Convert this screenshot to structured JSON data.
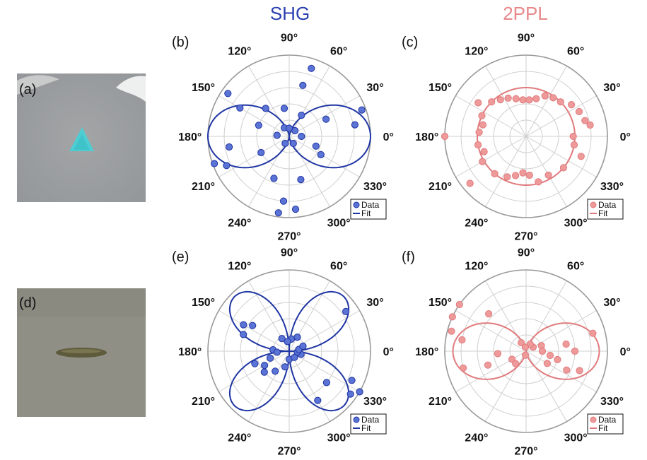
{
  "columns": [
    {
      "title": "SHG",
      "color": "#2b3fb0"
    },
    {
      "title": "2PPL",
      "color": "#e8888a"
    }
  ],
  "image_panels": [
    {
      "label": "(a)",
      "description_colors": {
        "background": "#9d9fa0",
        "flake": "#4cc9cf"
      }
    },
    {
      "label": "(d)",
      "description_colors": {
        "background": "#8e8e84",
        "flake": "#5e5a3c"
      }
    }
  ],
  "colors": {
    "shg": "#1f35a3",
    "shg_fill": "#5a73d4",
    "ppl": "#e07a7c",
    "ppl_fill": "#ef9a9a",
    "grid": "#cfcfcf"
  },
  "chart_data": [
    {
      "label": "(b)",
      "type": "scatter",
      "projection": "polar",
      "angle_unit": "deg",
      "radial_ticks": 5,
      "grid": true,
      "legend": "bottom-right",
      "angle_labels": [
        "0°",
        "30°",
        "60°",
        "90°",
        "120°",
        "150°",
        "180°",
        "210°",
        "240°",
        "270°",
        "300°",
        "330°"
      ],
      "series": [
        {
          "name": "Data",
          "points": [
            [
              20,
              0.95
            ],
            [
              10,
              0.82
            ],
            [
              25,
              0.5
            ],
            [
              72,
              0.88
            ],
            [
              75,
              0.65
            ],
            [
              60,
              0.3
            ],
            [
              100,
              0.35
            ],
            [
              130,
              0.45
            ],
            [
              145,
              0.92
            ],
            [
              150,
              0.7
            ],
            [
              160,
              0.4
            ],
            [
              175,
              0.15
            ],
            [
              190,
              0.75
            ],
            [
              200,
              0.98
            ],
            [
              205,
              0.85
            ],
            [
              210,
              0.4
            ],
            [
              250,
              0.55
            ],
            [
              262,
              0.95
            ],
            [
              265,
              0.8
            ],
            [
              275,
              0.9
            ],
            [
              285,
              0.55
            ],
            [
              330,
              0.45
            ],
            [
              340,
              0.35
            ],
            [
              0,
              0.15
            ],
            [
              45,
              0.1
            ],
            [
              120,
              0.12
            ],
            [
              240,
              0.1
            ],
            [
              300,
              0.1
            ],
            [
              90,
              0.1
            ]
          ]
        },
        {
          "name": "Fit",
          "model": "|cos(3(θ-θ0))|",
          "theta0_deg": 15,
          "amplitude": 1.0
        }
      ]
    },
    {
      "label": "(c)",
      "type": "scatter",
      "projection": "polar",
      "angle_unit": "deg",
      "radial_ticks": 5,
      "grid": true,
      "legend": "bottom-right",
      "angle_labels": [
        "0°",
        "30°",
        "60°",
        "90°",
        "120°",
        "150°",
        "180°",
        "210°",
        "240°",
        "270°",
        "300°",
        "330°"
      ],
      "series": [
        {
          "name": "Data",
          "points": [
            [
              0,
              0.58
            ],
            [
              10,
              0.8
            ],
            [
              15,
              0.75
            ],
            [
              25,
              0.72
            ],
            [
              35,
              0.68
            ],
            [
              45,
              0.6
            ],
            [
              55,
              0.58
            ],
            [
              65,
              0.55
            ],
            [
              75,
              0.48
            ],
            [
              85,
              0.45
            ],
            [
              95,
              0.45
            ],
            [
              105,
              0.48
            ],
            [
              115,
              0.52
            ],
            [
              125,
              0.55
            ],
            [
              135,
              0.6
            ],
            [
              145,
              0.72
            ],
            [
              155,
              0.6
            ],
            [
              165,
              0.55
            ],
            [
              175,
              0.58
            ],
            [
              180,
              1.0
            ],
            [
              190,
              0.6
            ],
            [
              200,
              0.55
            ],
            [
              210,
              0.62
            ],
            [
              220,
              0.9
            ],
            [
              230,
              0.6
            ],
            [
              245,
              0.55
            ],
            [
              255,
              0.5
            ],
            [
              265,
              0.45
            ],
            [
              275,
              0.48
            ],
            [
              285,
              0.58
            ],
            [
              300,
              0.55
            ],
            [
              320,
              0.6
            ],
            [
              340,
              0.72
            ],
            [
              350,
              0.6
            ]
          ]
        },
        {
          "name": "Fit",
          "model": "constant",
          "value": 0.6
        }
      ]
    },
    {
      "label": "(e)",
      "type": "scatter",
      "projection": "polar",
      "angle_unit": "deg",
      "radial_ticks": 5,
      "grid": true,
      "legend": "bottom-right",
      "angle_labels": [
        "0°",
        "30°",
        "60°",
        "90°",
        "120°",
        "150°",
        "180°",
        "210°",
        "240°",
        "270°",
        "300°",
        "330°"
      ],
      "series": [
        {
          "name": "Data",
          "points": [
            [
              35,
              0.85
            ],
            [
              145,
              0.55
            ],
            [
              150,
              0.65
            ],
            [
              160,
              0.6
            ],
            [
              175,
              0.2
            ],
            [
              185,
              0.15
            ],
            [
              200,
              0.45
            ],
            [
              210,
              0.35
            ],
            [
              220,
              0.4
            ],
            [
              235,
              0.3
            ],
            [
              255,
              0.2
            ],
            [
              300,
              0.7
            ],
            [
              320,
              0.6
            ],
            [
              325,
              0.92
            ],
            [
              330,
              1.0
            ],
            [
              335,
              0.85
            ],
            [
              345,
              0.15
            ],
            [
              355,
              0.1
            ],
            [
              10,
              0.12
            ],
            [
              20,
              0.18
            ],
            [
              60,
              0.2
            ],
            [
              80,
              0.15
            ],
            [
              100,
              0.12
            ],
            [
              120,
              0.18
            ],
            [
              200,
              0.25
            ],
            [
              270,
              0.1
            ],
            [
              310,
              0.1
            ]
          ]
        },
        {
          "name": "Fit",
          "model": "|sin(2θ)|",
          "amplitude": 0.95
        }
      ]
    },
    {
      "label": "(f)",
      "type": "scatter",
      "projection": "polar",
      "angle_unit": "deg",
      "radial_ticks": 5,
      "grid": true,
      "legend": "bottom-right",
      "angle_labels": [
        "0°",
        "30°",
        "60°",
        "90°",
        "120°",
        "150°",
        "180°",
        "210°",
        "240°",
        "270°",
        "300°",
        "330°"
      ],
      "series": [
        {
          "name": "Data",
          "points": [
            [
              0,
              0.6
            ],
            [
              10,
              0.5
            ],
            [
              15,
              0.85
            ],
            [
              20,
              0.2
            ],
            [
              30,
              0.1
            ],
            [
              60,
              0.1
            ],
            [
              120,
              0.12
            ],
            [
              135,
              0.65
            ],
            [
              145,
              1.0
            ],
            [
              155,
              1.0
            ],
            [
              165,
              0.95
            ],
            [
              170,
              0.8
            ],
            [
              185,
              0.35
            ],
            [
              195,
              0.8
            ],
            [
              200,
              0.5
            ],
            [
              210,
              0.2
            ],
            [
              230,
              0.2
            ],
            [
              330,
              0.3
            ],
            [
              335,
              0.55
            ],
            [
              340,
              0.7
            ],
            [
              345,
              0.4
            ],
            [
              350,
              0.3
            ],
            [
              0,
              0.2
            ],
            [
              100,
              0.05
            ],
            [
              260,
              0.05
            ]
          ]
        },
        {
          "name": "Fit",
          "model": "cos^2(θ)",
          "amplitude": 0.9
        }
      ]
    }
  ],
  "legend": {
    "data_label": "Data",
    "fit_label": "Fit"
  }
}
